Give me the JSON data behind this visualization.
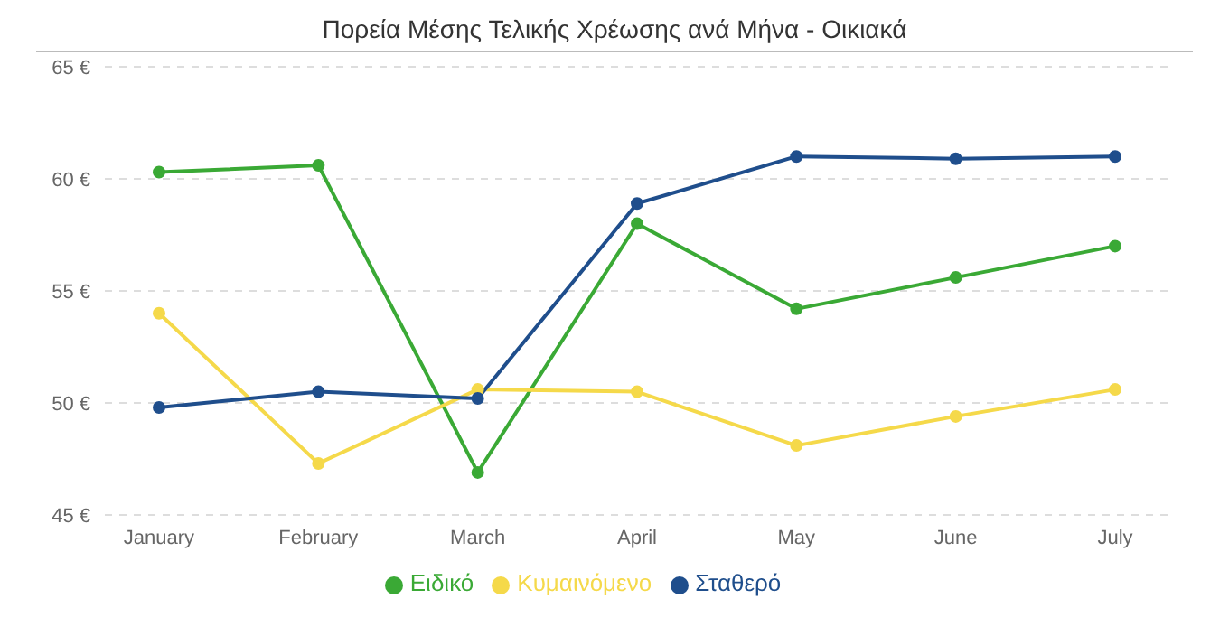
{
  "chart_data": {
    "type": "line",
    "title": "Πορεία Μέσης Τελικής Χρέωσης ανά Μήνα - Οικιακά",
    "categories": [
      "January",
      "February",
      "March",
      "April",
      "May",
      "June",
      "July"
    ],
    "series": [
      {
        "name": "Ειδικό",
        "color": "#3aa935",
        "values": [
          60.3,
          60.6,
          46.9,
          58.0,
          54.2,
          55.6,
          57.0
        ]
      },
      {
        "name": "Κυμαινόμενο",
        "color": "#f5d94a",
        "values": [
          54.0,
          47.3,
          50.6,
          50.5,
          48.1,
          49.4,
          50.6
        ]
      },
      {
        "name": "Σταθερό",
        "color": "#1f4e8c",
        "values": [
          49.8,
          50.5,
          50.2,
          58.9,
          61.0,
          60.9,
          61.0
        ]
      }
    ],
    "ylim": [
      45,
      65
    ],
    "yticks": [
      {
        "value": 45,
        "label": "45 €"
      },
      {
        "value": 50,
        "label": "50 €"
      },
      {
        "value": 55,
        "label": "55 €"
      },
      {
        "value": 60,
        "label": "60 €"
      },
      {
        "value": 65,
        "label": "65 €"
      }
    ],
    "grid": "y",
    "legend": "bottom",
    "marker": "circle",
    "line_style": "solid"
  }
}
